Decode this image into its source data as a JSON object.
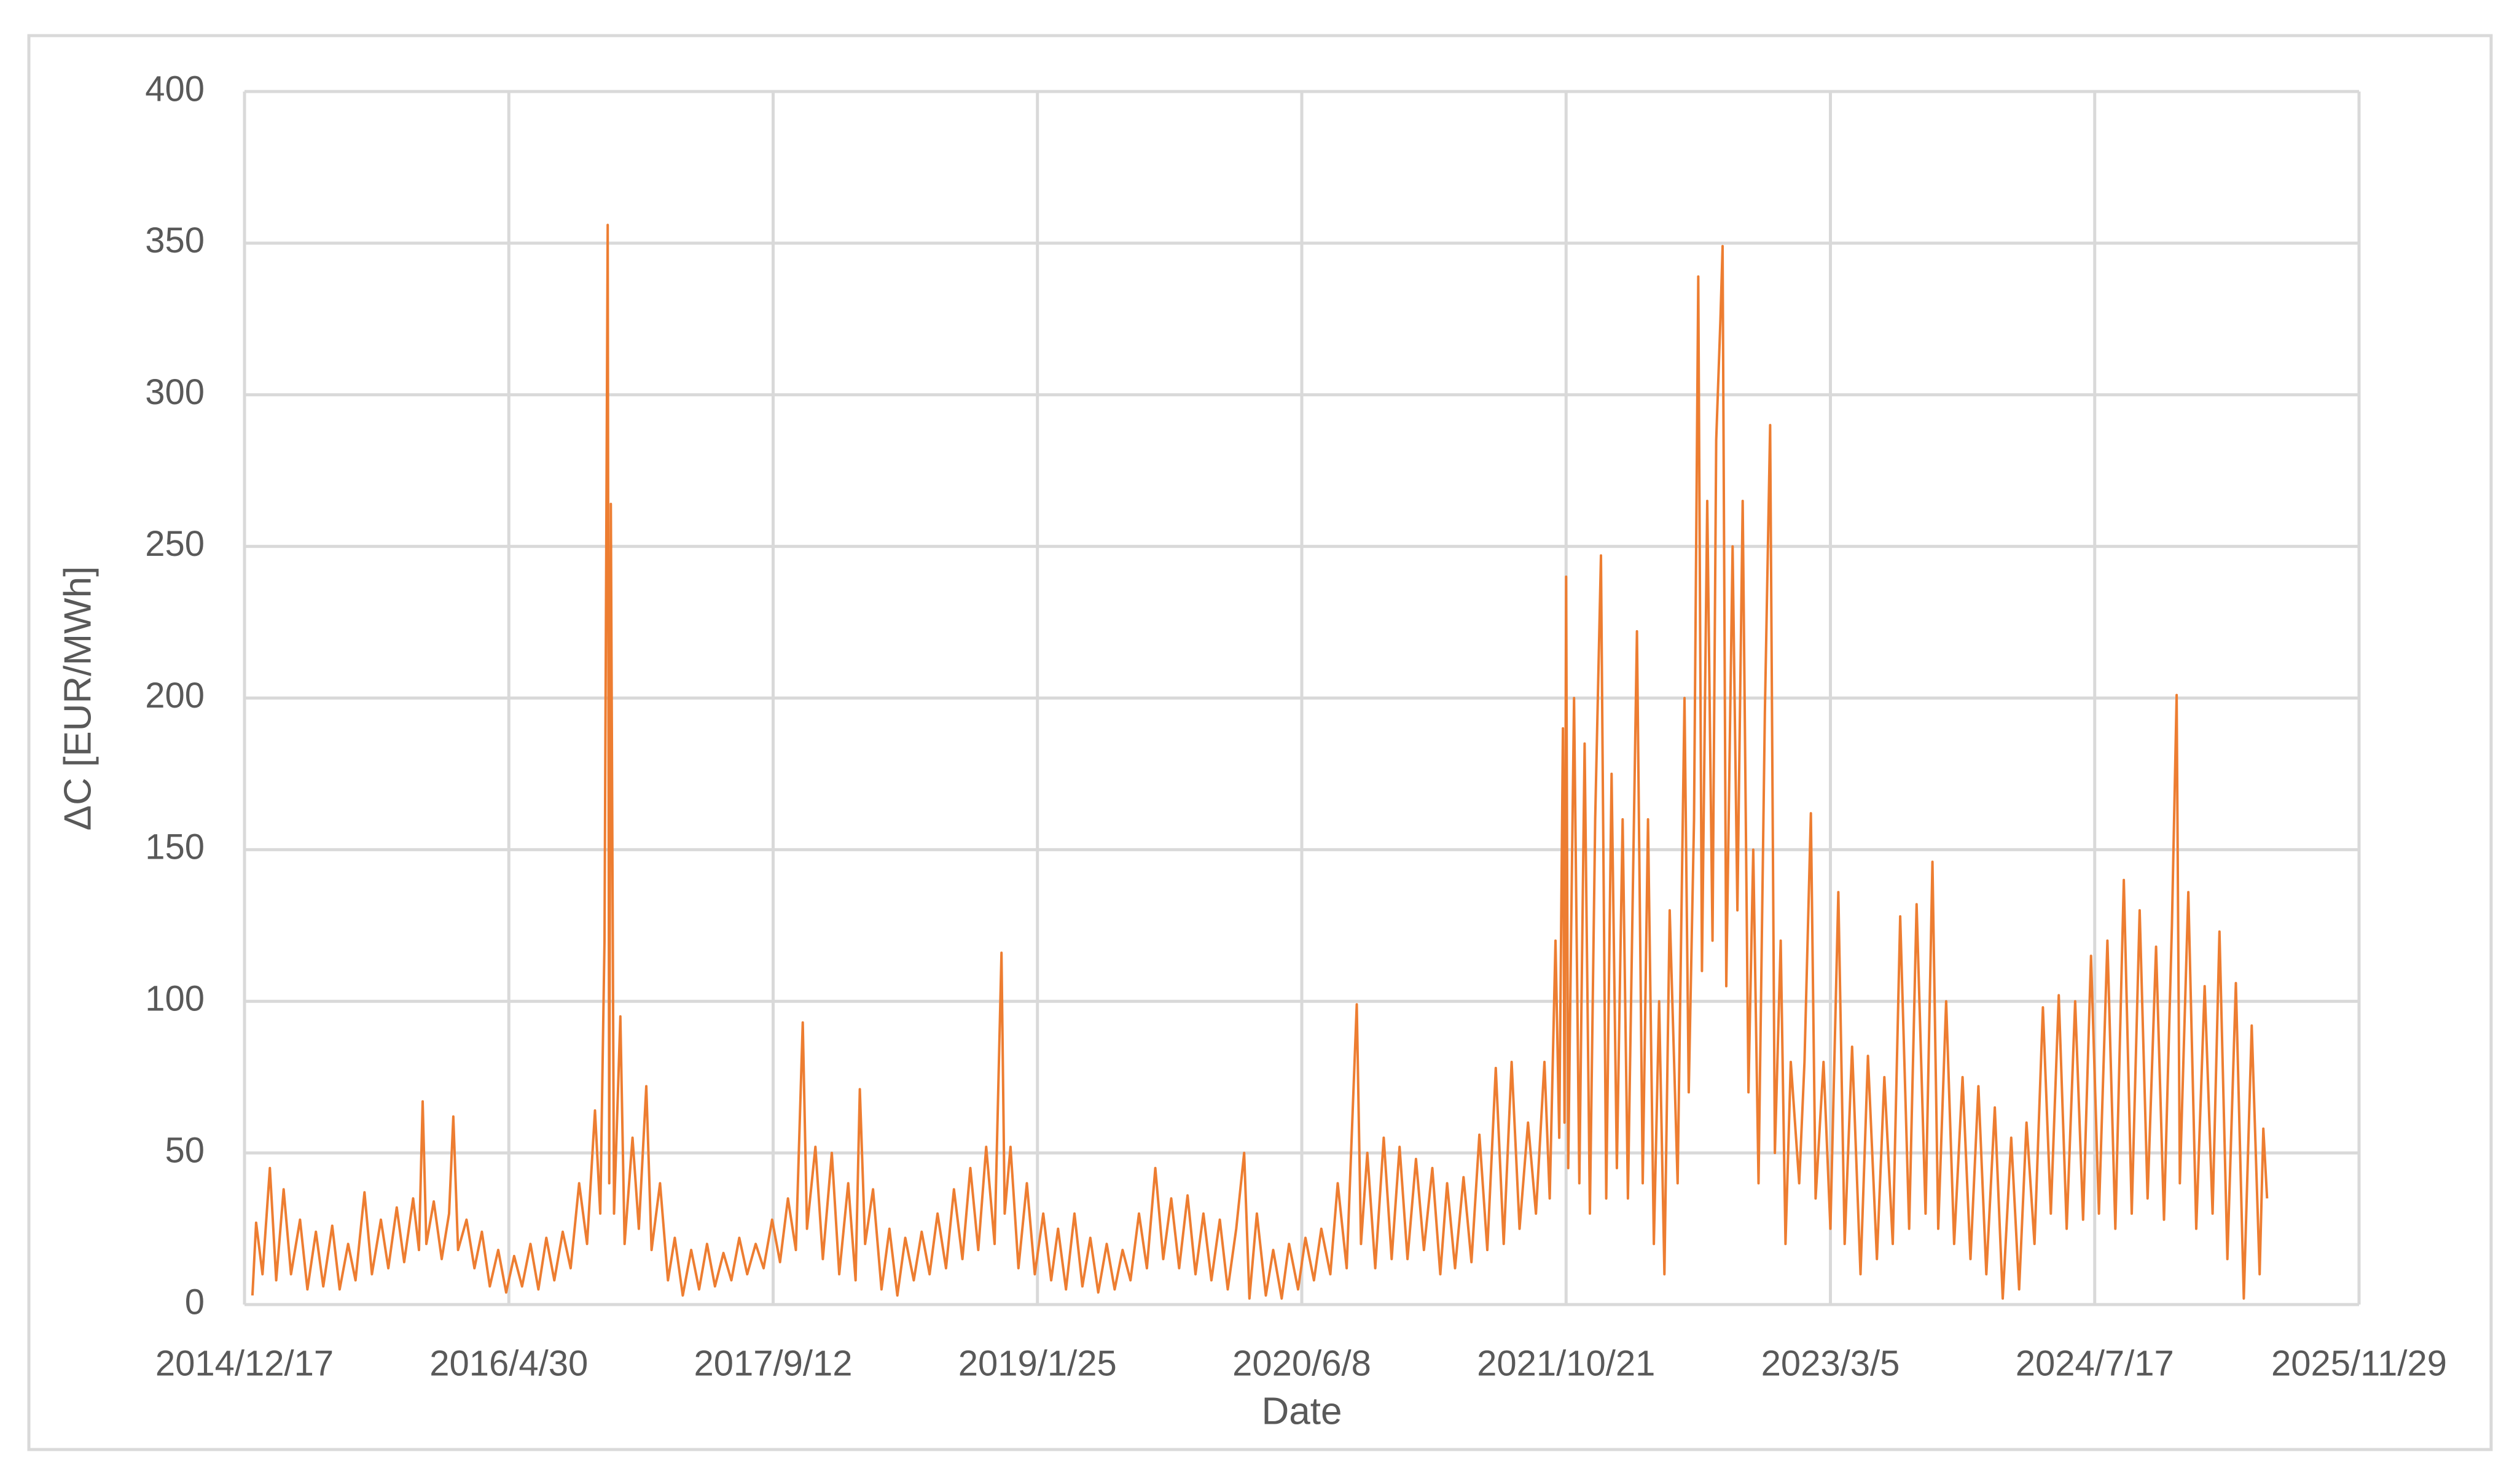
{
  "chart_data": {
    "type": "line",
    "x_label": "Date",
    "y_label": "ΔC [EUR/MWh]",
    "xlim": [
      "2014/12/17",
      "2025/11/29"
    ],
    "xticks": [
      "2014/12/17",
      "2016/4/30",
      "2017/9/12",
      "2019/1/25",
      "2020/6/8",
      "2021/10/21",
      "2023/3/5",
      "2024/7/17",
      "2025/11/29"
    ],
    "ylim": [
      0,
      400
    ],
    "yticks": [
      0,
      50,
      100,
      150,
      200,
      250,
      300,
      350,
      400
    ],
    "grid": true,
    "series": [
      {
        "color": "#ed7d31",
        "x": [
          "2015/1/1",
          "2015/1/8",
          "2015/1/20",
          "2015/2/3",
          "2015/2/15",
          "2015/3/1",
          "2015/3/15",
          "2015/4/1",
          "2015/4/15",
          "2015/5/1",
          "2015/5/15",
          "2015/6/1",
          "2015/6/15",
          "2015/7/1",
          "2015/7/15",
          "2015/8/1",
          "2015/8/15",
          "2015/9/1",
          "2015/9/15",
          "2015/10/1",
          "2015/10/15",
          "2015/11/1",
          "2015/11/12",
          "2015/11/19",
          "2015/11/26",
          "2015/12/10",
          "2015/12/25",
          "2016/1/8",
          "2016/1/16",
          "2016/1/25",
          "2016/2/10",
          "2016/2/25",
          "2016/3/10",
          "2016/3/25",
          "2016/4/10",
          "2016/4/25",
          "2016/5/10",
          "2016/5/25",
          "2016/6/10",
          "2016/6/25",
          "2016/7/10",
          "2016/7/25",
          "2016/8/10",
          "2016/8/25",
          "2016/9/10",
          "2016/9/25",
          "2016/10/10",
          "2016/10/20",
          "2016/10/28",
          "2016/11/3",
          "2016/11/6",
          "2016/11/9",
          "2016/11/15",
          "2016/11/27",
          "2016/12/5",
          "2016/12/20",
          "2017/1/1",
          "2017/1/15",
          "2017/1/25",
          "2017/2/10",
          "2017/2/25",
          "2017/3/10",
          "2017/3/25",
          "2017/4/10",
          "2017/4/25",
          "2017/5/10",
          "2017/5/25",
          "2017/6/10",
          "2017/6/25",
          "2017/7/10",
          "2017/7/25",
          "2017/8/10",
          "2017/8/25",
          "2017/9/10",
          "2017/9/25",
          "2017/10/10",
          "2017/10/25",
          "2017/11/7",
          "2017/11/15",
          "2017/12/1",
          "2017/12/15",
          "2018/1/1",
          "2018/1/15",
          "2018/2/1",
          "2018/2/15",
          "2018/2/23",
          "2018/3/5",
          "2018/3/20",
          "2018/4/5",
          "2018/4/20",
          "2018/5/5",
          "2018/5/20",
          "2018/6/5",
          "2018/6/20",
          "2018/7/5",
          "2018/7/20",
          "2018/8/5",
          "2018/8/20",
          "2018/9/5",
          "2018/9/20",
          "2018/10/5",
          "2018/10/20",
          "2018/11/5",
          "2018/11/18",
          "2018/11/24",
          "2018/12/5",
          "2018/12/20",
          "2019/1/5",
          "2019/1/20",
          "2019/2/5",
          "2019/2/20",
          "2019/3/5",
          "2019/3/20",
          "2019/4/5",
          "2019/4/20",
          "2019/5/5",
          "2019/5/20",
          "2019/6/5",
          "2019/6/20",
          "2019/7/5",
          "2019/7/20",
          "2019/8/5",
          "2019/8/20",
          "2019/9/5",
          "2019/9/20",
          "2019/10/5",
          "2019/10/20",
          "2019/11/5",
          "2019/11/20",
          "2019/12/5",
          "2019/12/20",
          "2020/1/5",
          "2020/1/20",
          "2020/2/5",
          "2020/2/20",
          "2020/3/1",
          "2020/3/15",
          "2020/4/1",
          "2020/4/15",
          "2020/5/1",
          "2020/5/15",
          "2020/6/1",
          "2020/6/15",
          "2020/7/1",
          "2020/7/15",
          "2020/8/1",
          "2020/8/15",
          "2020/9/1",
          "2020/9/20",
          "2020/9/28",
          "2020/10/10",
          "2020/10/25",
          "2020/11/10",
          "2020/11/25",
          "2020/12/10",
          "2020/12/25",
          "2021/1/10",
          "2021/1/25",
          "2021/2/10",
          "2021/2/25",
          "2021/3/10",
          "2021/3/25",
          "2021/4/10",
          "2021/4/25",
          "2021/5/10",
          "2021/5/25",
          "2021/6/10",
          "2021/6/25",
          "2021/7/10",
          "2021/7/25",
          "2021/8/10",
          "2021/8/25",
          "2021/9/10",
          "2021/9/20",
          "2021/10/1",
          "2021/10/8",
          "2021/10/15",
          "2021/10/18",
          "2021/10/21",
          "2021/10/25",
          "2021/11/5",
          "2021/11/15",
          "2021/11/25",
          "2021/12/5",
          "2021/12/15",
          "2021/12/26",
          "2022/1/5",
          "2022/1/15",
          "2022/1/25",
          "2022/2/5",
          "2022/2/15",
          "2022/3/4",
          "2022/3/15",
          "2022/3/25",
          "2022/4/5",
          "2022/4/15",
          "2022/4/25",
          "2022/5/5",
          "2022/5/20",
          "2022/6/2",
          "2022/6/10",
          "2022/6/20",
          "2022/6/28",
          "2022/7/5",
          "2022/7/15",
          "2022/7/25",
          "2022/8/1",
          "2022/8/9",
          "2022/8/13",
          "2022/8/20",
          "2022/9/1",
          "2022/9/10",
          "2022/9/20",
          "2022/10/1",
          "2022/10/10",
          "2022/10/20",
          "2022/11/1",
          "2022/11/11",
          "2022/11/20",
          "2022/12/1",
          "2022/12/10",
          "2022/12/20",
          "2023/1/5",
          "2023/1/15",
          "2023/1/27",
          "2023/2/5",
          "2023/2/20",
          "2023/3/5",
          "2023/3/20",
          "2023/4/1",
          "2023/4/15",
          "2023/5/1",
          "2023/5/15",
          "2023/6/1",
          "2023/6/15",
          "2023/7/1",
          "2023/7/15",
          "2023/8/1",
          "2023/8/15",
          "2023/9/1",
          "2023/9/14",
          "2023/9/25",
          "2023/10/10",
          "2023/10/25",
          "2023/11/10",
          "2023/11/25",
          "2023/12/10",
          "2023/12/25",
          "2024/1/10",
          "2024/1/25",
          "2024/2/10",
          "2024/2/25",
          "2024/3/10",
          "2024/3/25",
          "2024/4/10",
          "2024/4/25",
          "2024/5/10",
          "2024/5/25",
          "2024/6/10",
          "2024/6/25",
          "2024/7/10",
          "2024/7/25",
          "2024/8/10",
          "2024/8/25",
          "2024/9/10",
          "2024/9/25",
          "2024/10/10",
          "2024/10/25",
          "2024/11/10",
          "2024/11/25",
          "2024/12/10",
          "2024/12/19",
          "2024/12/25",
          "2025/1/10",
          "2025/1/25",
          "2025/2/10",
          "2025/2/25",
          "2025/3/10",
          "2025/3/25",
          "2025/4/10",
          "2025/4/25",
          "2025/5/10",
          "2025/5/25",
          "2025/6/1",
          "2025/6/8"
        ],
        "values": [
          3,
          27,
          10,
          45,
          8,
          38,
          10,
          28,
          5,
          24,
          6,
          26,
          5,
          20,
          8,
          37,
          10,
          28,
          12,
          32,
          14,
          35,
          18,
          67,
          20,
          34,
          15,
          30,
          62,
          18,
          28,
          12,
          24,
          6,
          18,
          4,
          16,
          6,
          20,
          5,
          22,
          8,
          24,
          12,
          40,
          20,
          64,
          30,
          120,
          356,
          40,
          264,
          30,
          95,
          20,
          55,
          25,
          72,
          18,
          40,
          8,
          22,
          3,
          18,
          5,
          20,
          6,
          17,
          8,
          22,
          10,
          20,
          12,
          28,
          14,
          35,
          18,
          93,
          25,
          52,
          15,
          50,
          10,
          40,
          8,
          71,
          20,
          38,
          5,
          25,
          3,
          22,
          8,
          24,
          10,
          30,
          12,
          38,
          15,
          45,
          18,
          52,
          20,
          116,
          30,
          52,
          12,
          40,
          10,
          30,
          8,
          25,
          5,
          30,
          6,
          22,
          4,
          20,
          5,
          18,
          8,
          30,
          12,
          45,
          15,
          35,
          12,
          36,
          10,
          30,
          8,
          28,
          5,
          25,
          50,
          2,
          30,
          3,
          18,
          2,
          20,
          5,
          22,
          8,
          25,
          10,
          40,
          12,
          99,
          20,
          50,
          12,
          55,
          15,
          52,
          15,
          48,
          18,
          45,
          10,
          40,
          12,
          42,
          14,
          56,
          18,
          78,
          20,
          80,
          25,
          60,
          30,
          80,
          35,
          120,
          55,
          190,
          60,
          240,
          45,
          200,
          40,
          185,
          30,
          160,
          247,
          35,
          175,
          45,
          160,
          35,
          222,
          40,
          160,
          20,
          100,
          10,
          130,
          40,
          200,
          70,
          160,
          339,
          110,
          265,
          120,
          285,
          325,
          349,
          105,
          250,
          130,
          265,
          70,
          150,
          40,
          195,
          290,
          50,
          120,
          20,
          80,
          40,
          80,
          162,
          35,
          80,
          25,
          136,
          20,
          85,
          10,
          82,
          15,
          75,
          20,
          128,
          25,
          132,
          30,
          146,
          25,
          100,
          20,
          75,
          15,
          72,
          10,
          65,
          2,
          55,
          5,
          60,
          20,
          98,
          30,
          102,
          25,
          100,
          28,
          115,
          30,
          120,
          25,
          140,
          30,
          130,
          35,
          118,
          28,
          125,
          201,
          40,
          136,
          25,
          105,
          30,
          123,
          15,
          106,
          2,
          92,
          10,
          58,
          35
        ]
      }
    ]
  }
}
